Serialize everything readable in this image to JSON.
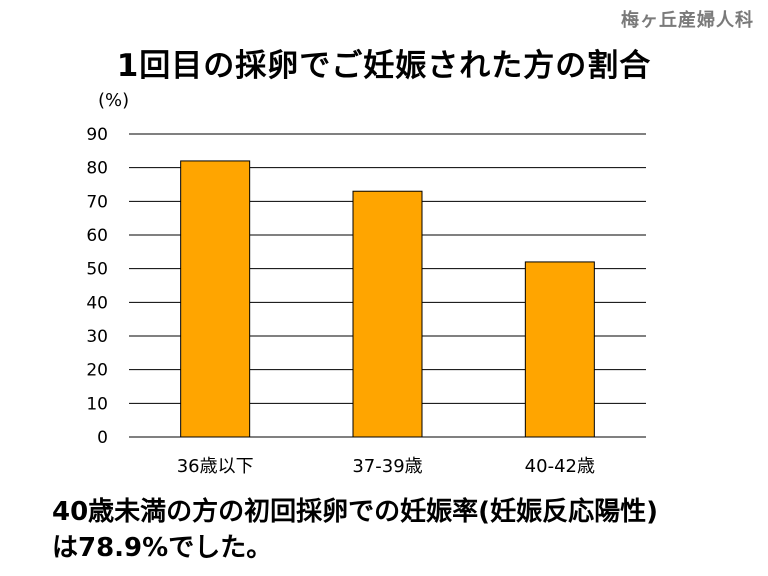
{
  "brand": "梅ヶ丘産婦人科",
  "chart_data": {
    "type": "bar",
    "title": "1回目の採卵でご妊娠された方の割合",
    "ylabel": "(%)",
    "xlabel": "",
    "categories": [
      "36歳以下",
      "37-39歳",
      "40-42歳"
    ],
    "values": [
      82,
      73,
      52
    ],
    "ylim": [
      0,
      90
    ],
    "yticks": [
      0,
      10,
      20,
      30,
      40,
      50,
      60,
      70,
      80,
      90
    ],
    "grid": true,
    "legend": "none",
    "bar_color": "#FFA500",
    "bar_stroke": "#000000"
  },
  "conclusion": {
    "line1": "40歳未満の方の初回採卵での妊娠率(妊娠反応陽性)",
    "line2": "は78.9%でした。"
  }
}
